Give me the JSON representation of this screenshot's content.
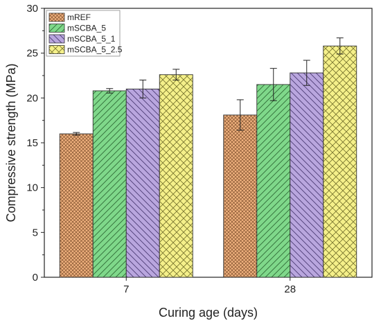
{
  "chart_data": {
    "type": "bar",
    "title": "",
    "xlabel": "Curing age (days)",
    "ylabel": "Compressive strength (MPa)",
    "ylim": [
      0,
      30
    ],
    "yticks": [
      0,
      5,
      10,
      15,
      20,
      25,
      30
    ],
    "grid": false,
    "legend_position": "top-left",
    "categories": [
      "7",
      "28"
    ],
    "series": [
      {
        "name": "mREF",
        "values": [
          16.0,
          18.1
        ],
        "errors": [
          0.15,
          1.7
        ],
        "color": "#f2b380",
        "pattern": "crosshatch-dense"
      },
      {
        "name": "mSCBA_5",
        "values": [
          20.8,
          21.5
        ],
        "errors": [
          0.25,
          1.8
        ],
        "color": "#7fd88a",
        "pattern": "diagonal-right"
      },
      {
        "name": "mSCBA_5_1",
        "values": [
          21.0,
          22.8
        ],
        "errors": [
          1.0,
          1.4
        ],
        "color": "#b9a6de",
        "pattern": "diagonal-left"
      },
      {
        "name": "mSCBA_5_2.5",
        "values": [
          22.6,
          25.8
        ],
        "errors": [
          0.6,
          0.9
        ],
        "color": "#f5f08a",
        "pattern": "crosshatch"
      }
    ]
  }
}
